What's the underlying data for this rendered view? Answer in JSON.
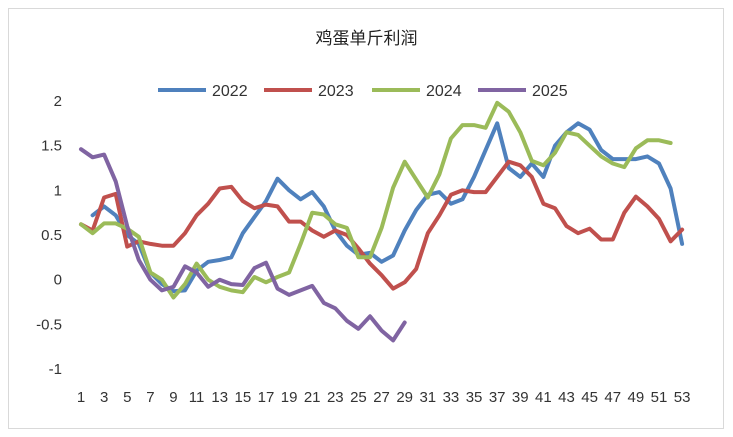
{
  "chart_data": {
    "type": "line",
    "title": "鸡蛋单斤利润",
    "xlabel": "",
    "ylabel": "",
    "ylim": [
      -1,
      2
    ],
    "yticks": [
      -1,
      -0.5,
      0,
      0.5,
      1,
      1.5,
      2
    ],
    "x_tick_labels": [
      "1",
      "3",
      "5",
      "7",
      "9",
      "11",
      "13",
      "15",
      "17",
      "19",
      "21",
      "23",
      "25",
      "27",
      "29",
      "31",
      "33",
      "35",
      "37",
      "39",
      "41",
      "43",
      "45",
      "47",
      "49",
      "51",
      "53"
    ],
    "grid": false,
    "legend_position": "top",
    "series": [
      {
        "name": "2022",
        "color": "#4f81bd",
        "points": [
          [
            2,
            0.72
          ],
          [
            3,
            0.82
          ],
          [
            4,
            0.72
          ],
          [
            5,
            0.5
          ],
          [
            6,
            0.4
          ],
          [
            7,
            0.08
          ],
          [
            8,
            -0.05
          ],
          [
            9,
            -0.13
          ],
          [
            10,
            -0.12
          ],
          [
            11,
            0.1
          ],
          [
            12,
            0.2
          ],
          [
            13,
            0.22
          ],
          [
            14,
            0.25
          ],
          [
            15,
            0.52
          ],
          [
            16,
            0.7
          ],
          [
            17,
            0.88
          ],
          [
            18,
            1.13
          ],
          [
            19,
            1.0
          ],
          [
            20,
            0.9
          ],
          [
            21,
            0.98
          ],
          [
            22,
            0.82
          ],
          [
            23,
            0.55
          ],
          [
            24,
            0.38
          ],
          [
            25,
            0.28
          ],
          [
            26,
            0.3
          ],
          [
            27,
            0.2
          ],
          [
            28,
            0.27
          ],
          [
            29,
            0.55
          ],
          [
            30,
            0.78
          ],
          [
            31,
            0.95
          ],
          [
            32,
            0.98
          ],
          [
            33,
            0.85
          ],
          [
            34,
            0.9
          ],
          [
            35,
            1.15
          ],
          [
            36,
            1.45
          ],
          [
            37,
            1.75
          ],
          [
            38,
            1.25
          ],
          [
            39,
            1.15
          ],
          [
            40,
            1.3
          ],
          [
            41,
            1.15
          ],
          [
            42,
            1.5
          ],
          [
            43,
            1.65
          ],
          [
            44,
            1.75
          ],
          [
            45,
            1.68
          ],
          [
            46,
            1.45
          ],
          [
            47,
            1.35
          ],
          [
            48,
            1.35
          ],
          [
            49,
            1.35
          ],
          [
            50,
            1.38
          ],
          [
            51,
            1.3
          ],
          [
            52,
            1.02
          ],
          [
            53,
            0.4
          ]
        ]
      },
      {
        "name": "2023",
        "color": "#c0504d",
        "points": [
          [
            1,
            0.62
          ],
          [
            2,
            0.55
          ],
          [
            3,
            0.92
          ],
          [
            4,
            0.96
          ],
          [
            5,
            0.37
          ],
          [
            6,
            0.43
          ],
          [
            7,
            0.4
          ],
          [
            8,
            0.38
          ],
          [
            9,
            0.38
          ],
          [
            10,
            0.52
          ],
          [
            11,
            0.72
          ],
          [
            12,
            0.85
          ],
          [
            13,
            1.02
          ],
          [
            14,
            1.04
          ],
          [
            15,
            0.88
          ],
          [
            16,
            0.8
          ],
          [
            17,
            0.84
          ],
          [
            18,
            0.82
          ],
          [
            19,
            0.65
          ],
          [
            20,
            0.65
          ],
          [
            21,
            0.55
          ],
          [
            22,
            0.48
          ],
          [
            23,
            0.55
          ],
          [
            24,
            0.5
          ],
          [
            25,
            0.35
          ],
          [
            26,
            0.18
          ],
          [
            27,
            0.05
          ],
          [
            28,
            -0.1
          ],
          [
            29,
            -0.03
          ],
          [
            30,
            0.12
          ],
          [
            31,
            0.52
          ],
          [
            32,
            0.72
          ],
          [
            33,
            0.95
          ],
          [
            34,
            1.0
          ],
          [
            35,
            0.98
          ],
          [
            36,
            0.98
          ],
          [
            37,
            1.15
          ],
          [
            38,
            1.32
          ],
          [
            39,
            1.28
          ],
          [
            40,
            1.15
          ],
          [
            41,
            0.85
          ],
          [
            42,
            0.8
          ],
          [
            43,
            0.6
          ],
          [
            44,
            0.52
          ],
          [
            45,
            0.57
          ],
          [
            46,
            0.45
          ],
          [
            47,
            0.45
          ],
          [
            48,
            0.75
          ],
          [
            49,
            0.93
          ],
          [
            50,
            0.82
          ],
          [
            51,
            0.68
          ],
          [
            52,
            0.43
          ],
          [
            53,
            0.56
          ]
        ]
      },
      {
        "name": "2024",
        "color": "#9bbb59",
        "points": [
          [
            1,
            0.62
          ],
          [
            2,
            0.52
          ],
          [
            3,
            0.63
          ],
          [
            4,
            0.63
          ],
          [
            5,
            0.57
          ],
          [
            6,
            0.48
          ],
          [
            7,
            0.08
          ],
          [
            8,
            0.0
          ],
          [
            9,
            -0.2
          ],
          [
            10,
            -0.05
          ],
          [
            11,
            0.18
          ],
          [
            12,
            0.0
          ],
          [
            13,
            -0.08
          ],
          [
            14,
            -0.12
          ],
          [
            15,
            -0.14
          ],
          [
            16,
            0.03
          ],
          [
            17,
            -0.03
          ],
          [
            18,
            0.03
          ],
          [
            19,
            0.08
          ],
          [
            20,
            0.4
          ],
          [
            21,
            0.75
          ],
          [
            22,
            0.73
          ],
          [
            23,
            0.62
          ],
          [
            24,
            0.58
          ],
          [
            25,
            0.25
          ],
          [
            26,
            0.25
          ],
          [
            27,
            0.58
          ],
          [
            28,
            1.03
          ],
          [
            29,
            1.32
          ],
          [
            30,
            1.12
          ],
          [
            31,
            0.92
          ],
          [
            32,
            1.18
          ],
          [
            33,
            1.58
          ],
          [
            34,
            1.73
          ],
          [
            35,
            1.73
          ],
          [
            36,
            1.7
          ],
          [
            37,
            1.98
          ],
          [
            38,
            1.88
          ],
          [
            39,
            1.65
          ],
          [
            40,
            1.33
          ],
          [
            41,
            1.28
          ],
          [
            42,
            1.42
          ],
          [
            43,
            1.65
          ],
          [
            44,
            1.62
          ],
          [
            45,
            1.5
          ],
          [
            46,
            1.38
          ],
          [
            47,
            1.3
          ],
          [
            48,
            1.26
          ],
          [
            49,
            1.47
          ],
          [
            50,
            1.56
          ],
          [
            51,
            1.56
          ],
          [
            52,
            1.53
          ]
        ]
      },
      {
        "name": "2025",
        "color": "#8064a2",
        "points": [
          [
            1,
            1.46
          ],
          [
            2,
            1.37
          ],
          [
            3,
            1.4
          ],
          [
            4,
            1.1
          ],
          [
            5,
            0.6
          ],
          [
            6,
            0.22
          ],
          [
            7,
            0.0
          ],
          [
            8,
            -0.12
          ],
          [
            9,
            -0.08
          ],
          [
            10,
            0.15
          ],
          [
            11,
            0.08
          ],
          [
            12,
            -0.08
          ],
          [
            13,
            0.0
          ],
          [
            14,
            -0.05
          ],
          [
            15,
            -0.06
          ],
          [
            16,
            0.13
          ],
          [
            17,
            0.19
          ],
          [
            18,
            -0.1
          ],
          [
            19,
            -0.17
          ],
          [
            20,
            -0.12
          ],
          [
            21,
            -0.07
          ],
          [
            22,
            -0.26
          ],
          [
            23,
            -0.32
          ],
          [
            24,
            -0.46
          ],
          [
            25,
            -0.55
          ],
          [
            26,
            -0.41
          ],
          [
            27,
            -0.57
          ],
          [
            28,
            -0.68
          ],
          [
            29,
            -0.48
          ]
        ]
      }
    ]
  }
}
